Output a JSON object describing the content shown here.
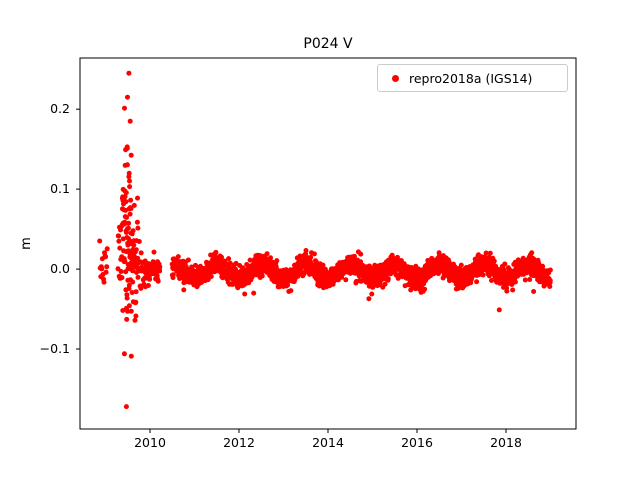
{
  "chart_data": {
    "type": "scatter",
    "title": "P024 V",
    "xlabel": "",
    "ylabel": "m",
    "xlim": [
      2008.427,
      2019.573
    ],
    "ylim": [
      -0.2,
      0.264
    ],
    "grid": false,
    "legend_position": "upper right",
    "xticks": {
      "values": [
        2010,
        2012,
        2014,
        2016,
        2018
      ],
      "labels": [
        "2010",
        "2012",
        "2014",
        "2016",
        "2018"
      ]
    },
    "yticks": {
      "values": [
        0.2,
        0.1,
        0.0,
        -0.1
      ],
      "labels": [
        "0.2",
        "0.1",
        "0.0",
        "−0.1"
      ]
    },
    "series": [
      {
        "name": "repro2018a (IGS14)",
        "color": "#ff0000",
        "marker": "circle",
        "marker_radius_px": 2.5,
        "points_spec": {
          "description": "Daily GPS vertical position residuals (m). Near-zero baseline with annual oscillation; large transient scatter burst during mid-2009.",
          "seed": 7,
          "clip": [
            -0.178,
            0.25
          ],
          "segments": [
            {
              "x_start": 2008.87,
              "x_end": 2009.04,
              "step": 0.012,
              "mean": 0.002,
              "std": 0.012,
              "seasonal_amp": 0,
              "seasonal_phase": 0
            },
            {
              "x_start": 2009.28,
              "x_end": 2009.38,
              "step": 0.007,
              "mean": 0.02,
              "std": 0.025,
              "seasonal_amp": 0,
              "seasonal_phase": 0
            },
            {
              "x_start": 2009.38,
              "x_end": 2009.47,
              "step": 0.003,
              "mean": 0.05,
              "std": 0.05,
              "seasonal_amp": 0,
              "seasonal_phase": 0
            },
            {
              "x_start": 2009.47,
              "x_end": 2009.6,
              "step": 0.0025,
              "mean": 0.04,
              "std": 0.06,
              "seasonal_amp": 0,
              "seasonal_phase": 0
            },
            {
              "x_start": 2009.6,
              "x_end": 2009.73,
              "step": 0.004,
              "mean": 0.015,
              "std": 0.035,
              "seasonal_amp": 0,
              "seasonal_phase": 0
            },
            {
              "x_start": 2009.73,
              "x_end": 2009.9,
              "step": 0.006,
              "mean": 0.003,
              "std": 0.013,
              "seasonal_amp": 0,
              "seasonal_phase": 0
            },
            {
              "x_start": 2009.9,
              "x_end": 2010.22,
              "step": 0.0045,
              "mean": 0.0,
              "std": 0.0065,
              "seasonal_amp": 0,
              "seasonal_phase": 0
            },
            {
              "x_start": 2010.5,
              "x_end": 2019.0,
              "step": 0.0035,
              "mean": -0.003,
              "std": 0.0062,
              "seasonal_amp": 0.0085,
              "seasonal_phase": 0.25
            }
          ],
          "notable_points": [
            {
              "x": 2009.525,
              "y": 0.245
            },
            {
              "x": 2009.495,
              "y": 0.215
            },
            {
              "x": 2009.555,
              "y": 0.185
            },
            {
              "x": 2009.47,
              "y": -0.172
            },
            {
              "x": 2009.425,
              "y": -0.106
            },
            {
              "x": 2009.58,
              "y": -0.109
            },
            {
              "x": 2010.76,
              "y": -0.026
            },
            {
              "x": 2012.33,
              "y": -0.03
            },
            {
              "x": 2013.12,
              "y": -0.028
            },
            {
              "x": 2014.92,
              "y": -0.037
            },
            {
              "x": 2017.85,
              "y": -0.051
            },
            {
              "x": 2018.62,
              "y": -0.028
            }
          ]
        }
      }
    ]
  }
}
